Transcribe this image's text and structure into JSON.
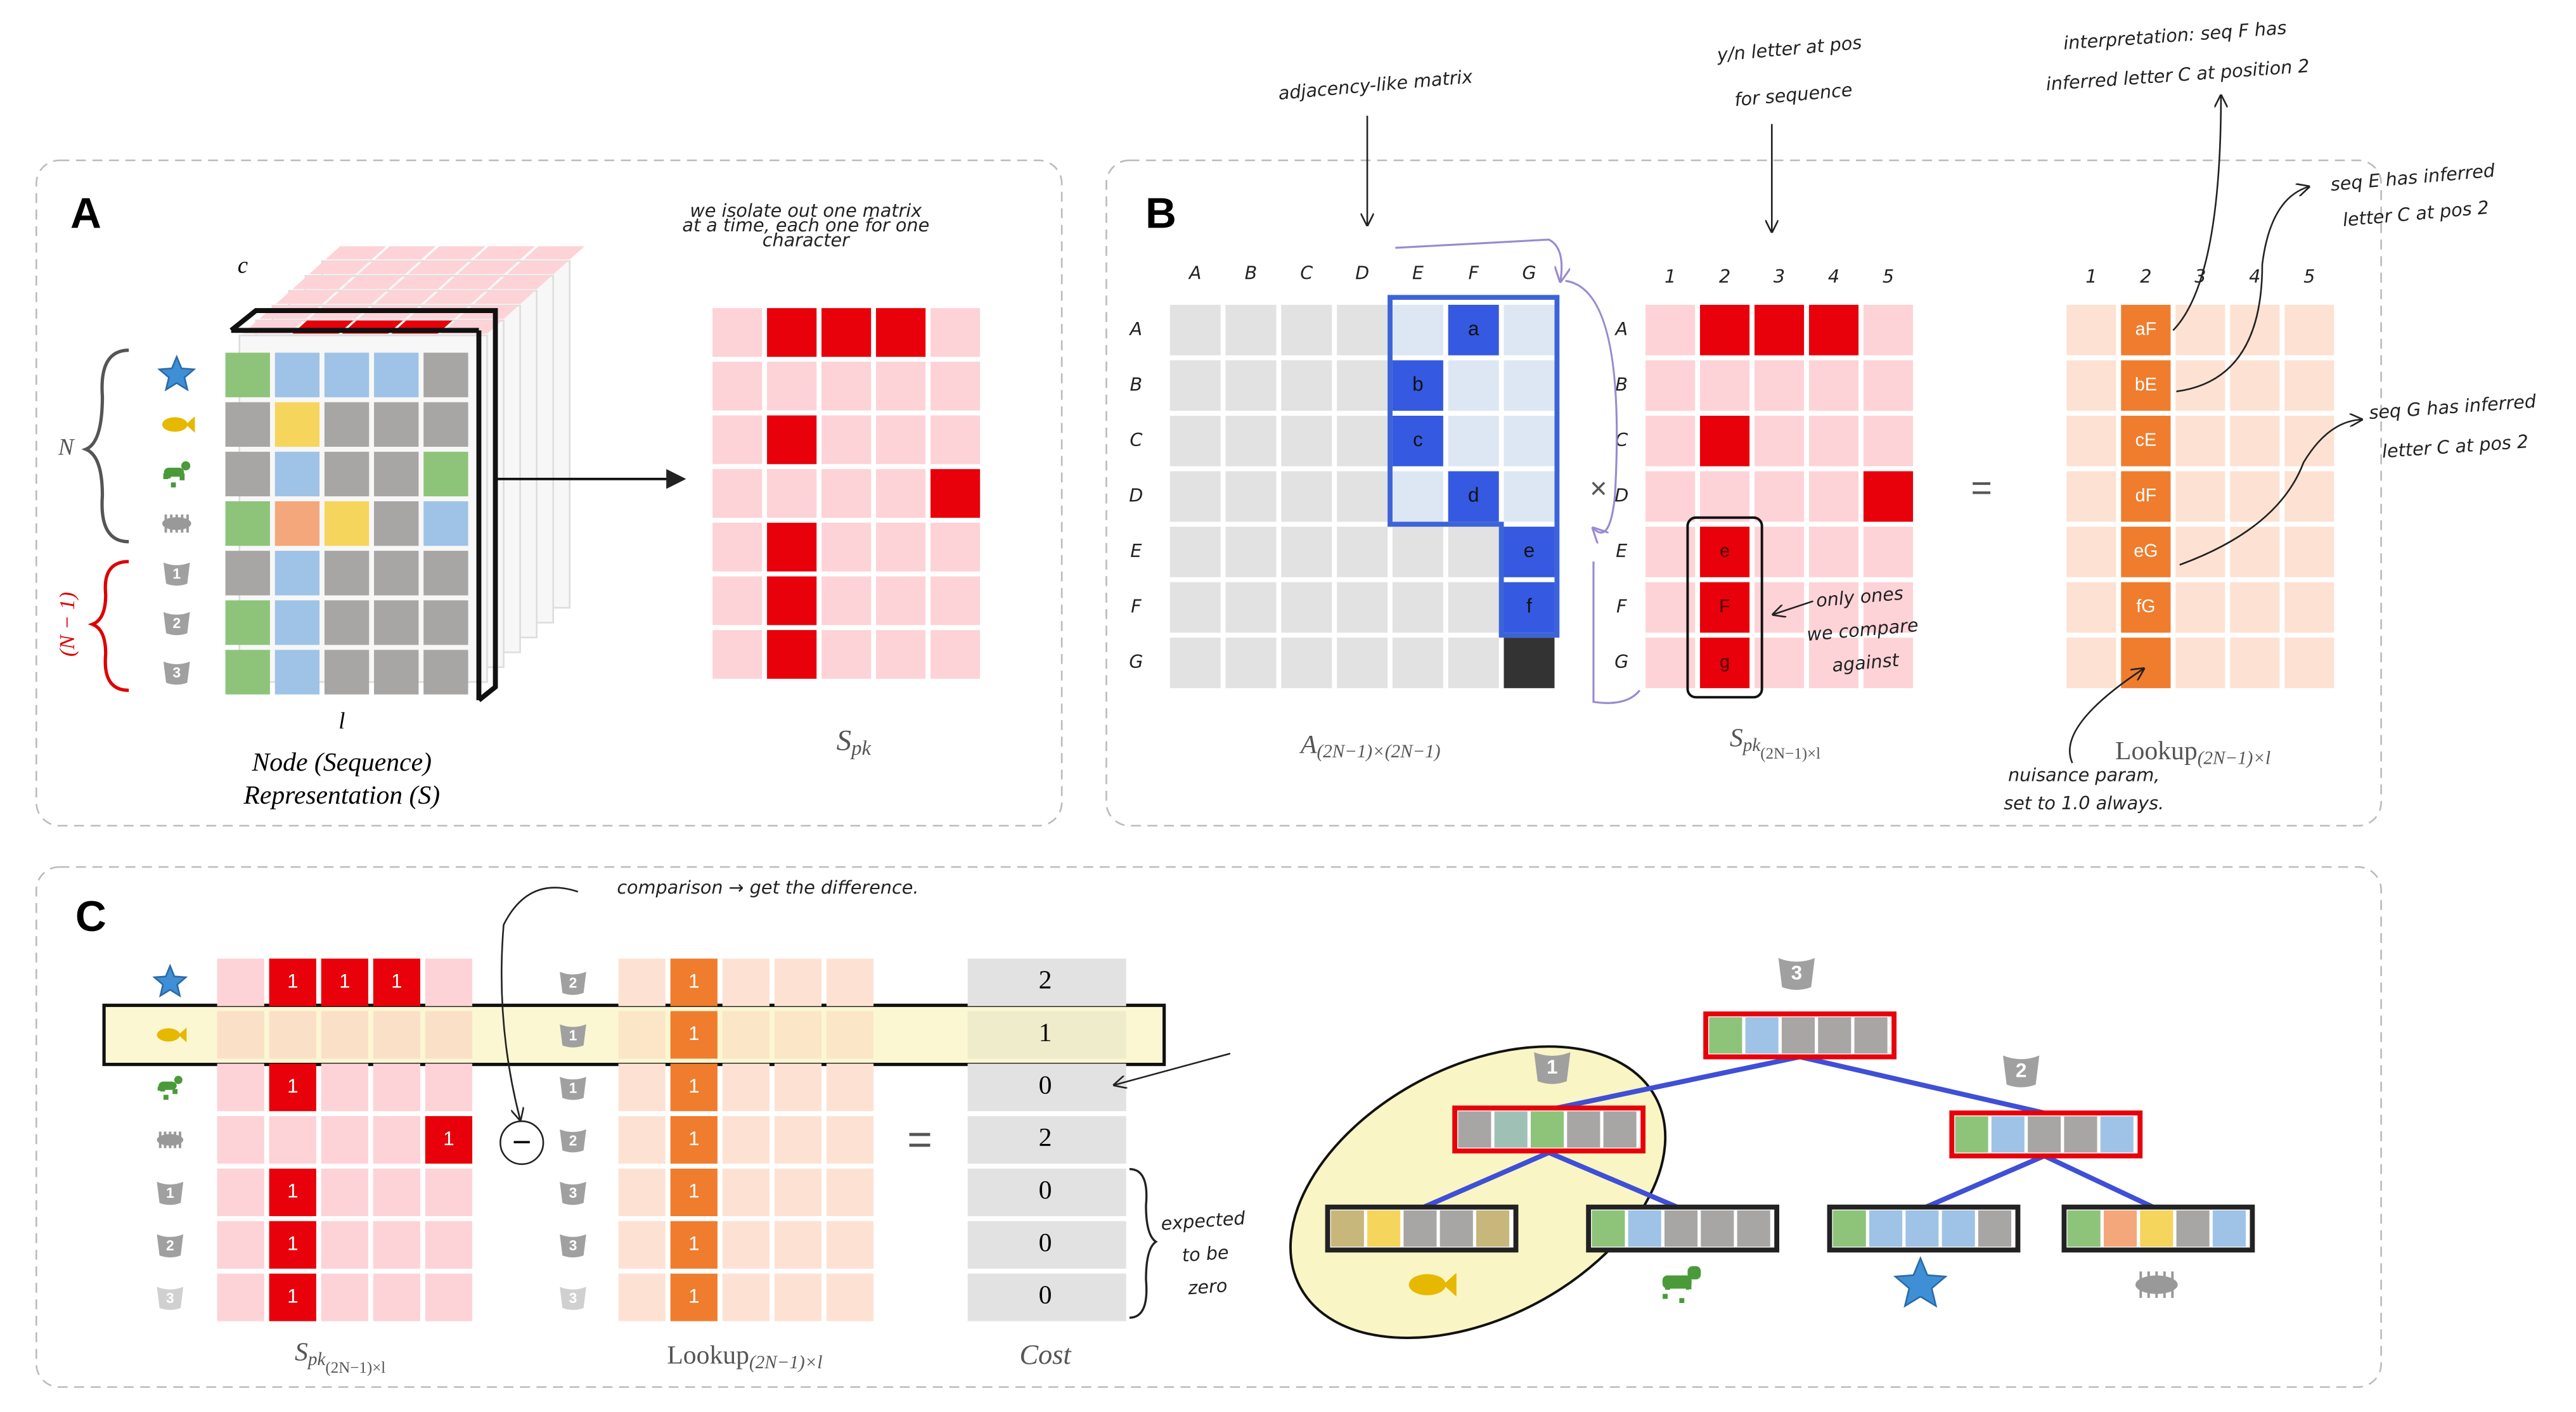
{
  "panel_a": {
    "label": "A",
    "cube_axis_c": "c",
    "n_label": "N",
    "n_minus_1_label": "(N − 1)",
    "l_label": "l",
    "caption_line1": "Node (Sequence)",
    "caption_line2": "Representation (S)",
    "note": [
      "we isolate out one matrix",
      "at a time, each one for one",
      "character"
    ],
    "icon_badges": [
      "1",
      "2",
      "3"
    ],
    "spk_label": {
      "base": "S",
      "sub": "pk"
    }
  },
  "panel_b": {
    "label": "B",
    "columns": [
      "A",
      "B",
      "C",
      "D",
      "E",
      "F",
      "G"
    ],
    "rows": [
      "A",
      "B",
      "C",
      "D",
      "E",
      "F",
      "G"
    ],
    "adjacency_cells": [
      [
        null,
        null,
        null,
        null,
        null,
        "a",
        null
      ],
      [
        null,
        null,
        null,
        null,
        "b",
        null,
        null
      ],
      [
        null,
        null,
        null,
        null,
        "c",
        null,
        null
      ],
      [
        null,
        null,
        null,
        null,
        null,
        "d",
        null
      ],
      [
        null,
        null,
        null,
        null,
        null,
        null,
        "e"
      ],
      [
        null,
        null,
        null,
        null,
        null,
        null,
        "f"
      ],
      [
        null,
        null,
        null,
        null,
        null,
        null,
        null
      ]
    ],
    "adjacency_label": {
      "base": "A",
      "sub": "(2N−1)×(2N−1)"
    },
    "times": "×",
    "equals": "=",
    "spk_positions": [
      "1",
      "2",
      "3",
      "4",
      "5"
    ],
    "spk_rows": [
      "A",
      "B",
      "C",
      "D",
      "E",
      "F",
      "G"
    ],
    "spk_cells": [
      [
        null,
        null,
        null,
        null,
        null
      ],
      [
        null,
        null,
        null,
        null,
        null
      ],
      [
        null,
        null,
        null,
        null,
        null
      ],
      [
        null,
        null,
        null,
        null,
        null
      ],
      [
        null,
        "e",
        null,
        null,
        null
      ],
      [
        null,
        "F",
        null,
        null,
        null
      ],
      [
        null,
        "g",
        null,
        null,
        null
      ]
    ],
    "spk_label": {
      "base": "S",
      "sub": "pk",
      "sub2": "(2N−1)×l"
    },
    "lookup_positions": [
      "1",
      "2",
      "3",
      "4",
      "5"
    ],
    "lookup_cells": [
      [
        null,
        "aF",
        null,
        null,
        null
      ],
      [
        null,
        "bE",
        null,
        null,
        null
      ],
      [
        null,
        "cE",
        null,
        null,
        null
      ],
      [
        null,
        "dF",
        null,
        null,
        null
      ],
      [
        null,
        "eG",
        null,
        null,
        null
      ],
      [
        null,
        "fG",
        null,
        null,
        null
      ],
      [
        null,
        null,
        null,
        null,
        null
      ]
    ],
    "lookup_label": {
      "base": "Lookup",
      "sub": "(2N−1)×l"
    },
    "annotation_adjacency": "adjacency-like matrix",
    "annotation_yn": [
      "y/n letter at pos",
      "for sequence"
    ],
    "annotation_interpretation": [
      "interpretation: seq F has",
      "inferred letter C at position 2"
    ],
    "annotation_seq_e": [
      "seq E has inferred",
      "letter C at pos 2"
    ],
    "annotation_seq_g": [
      "seq G has inferred",
      "letter C at pos 2"
    ],
    "annotation_compare": [
      "only ones",
      "we compare",
      "against"
    ],
    "annotation_nuisance": [
      "nuisance param,",
      "set to 1.0 always."
    ]
  },
  "panel_c": {
    "label": "C",
    "left_badges": [
      null,
      null,
      null,
      null,
      "1",
      "2",
      "3"
    ],
    "spk_cells": [
      [
        null,
        1,
        1,
        1,
        null
      ],
      [
        null,
        null,
        null,
        null,
        null
      ],
      [
        null,
        1,
        null,
        null,
        null
      ],
      [
        null,
        null,
        null,
        null,
        1
      ],
      [
        null,
        1,
        null,
        null,
        null
      ],
      [
        null,
        1,
        null,
        null,
        null
      ],
      [
        null,
        1,
        null,
        null,
        null
      ]
    ],
    "minus": "−",
    "middle_badges": [
      "2",
      "1",
      "1",
      "2",
      "3",
      "3",
      "3"
    ],
    "lookup_cells": [
      [
        null,
        1,
        null,
        null,
        null
      ],
      [
        null,
        1,
        null,
        null,
        null
      ],
      [
        null,
        1,
        null,
        null,
        null
      ],
      [
        null,
        1,
        null,
        null,
        null
      ],
      [
        null,
        1,
        null,
        null,
        null
      ],
      [
        null,
        1,
        null,
        null,
        null
      ],
      [
        null,
        1,
        null,
        null,
        null
      ]
    ],
    "equals": "=",
    "cost": [
      2,
      1,
      0,
      2,
      0,
      0,
      0
    ],
    "spk_label": {
      "base": "S",
      "sub": "pk",
      "sub2": "(2N−1)×l"
    },
    "lookup_label": {
      "base": "Lookup",
      "sub": "(2N−1)×l"
    },
    "cost_label": "Cost",
    "annotation_comparison": "comparison → get the difference.",
    "annotation_expected": [
      "expected",
      "to be",
      "zero"
    ],
    "tree_badges": {
      "root": "3",
      "left": "1",
      "right": "2"
    }
  }
}
